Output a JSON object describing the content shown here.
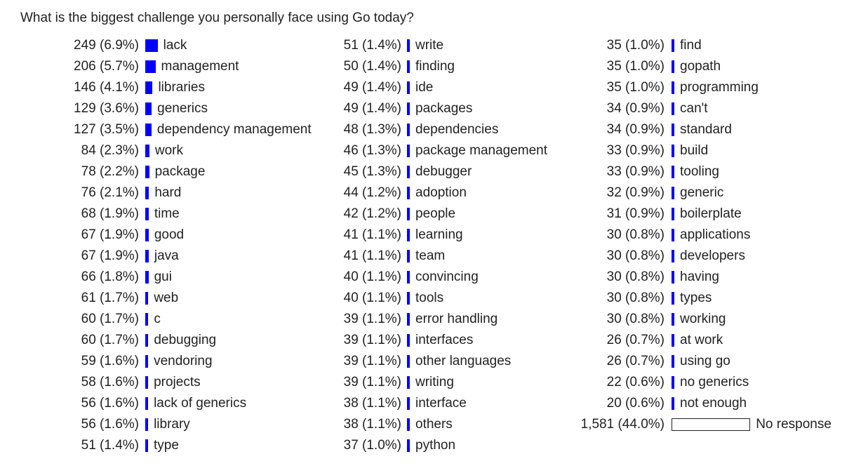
{
  "question": "What is the biggest challenge you personally face using Go today?",
  "chart_data": {
    "type": "bar",
    "title": "What is the biggest challenge you personally face using Go today?",
    "columns": [
      [
        {
          "count": "249",
          "pct": "(6.9%)",
          "value": 6.9,
          "label": "lack"
        },
        {
          "count": "206",
          "pct": "(5.7%)",
          "value": 5.7,
          "label": "management"
        },
        {
          "count": "146",
          "pct": "(4.1%)",
          "value": 4.1,
          "label": "libraries"
        },
        {
          "count": "129",
          "pct": "(3.6%)",
          "value": 3.6,
          "label": "generics"
        },
        {
          "count": "127",
          "pct": "(3.5%)",
          "value": 3.5,
          "label": "dependency management"
        },
        {
          "count": "84",
          "pct": "(2.3%)",
          "value": 2.3,
          "label": "work"
        },
        {
          "count": "78",
          "pct": "(2.2%)",
          "value": 2.2,
          "label": "package"
        },
        {
          "count": "76",
          "pct": "(2.1%)",
          "value": 2.1,
          "label": "hard"
        },
        {
          "count": "68",
          "pct": "(1.9%)",
          "value": 1.9,
          "label": "time"
        },
        {
          "count": "67",
          "pct": "(1.9%)",
          "value": 1.9,
          "label": "good"
        },
        {
          "count": "67",
          "pct": "(1.9%)",
          "value": 1.9,
          "label": "java"
        },
        {
          "count": "66",
          "pct": "(1.8%)",
          "value": 1.8,
          "label": "gui"
        },
        {
          "count": "61",
          "pct": "(1.7%)",
          "value": 1.7,
          "label": "web"
        },
        {
          "count": "60",
          "pct": "(1.7%)",
          "value": 1.7,
          "label": "c"
        },
        {
          "count": "60",
          "pct": "(1.7%)",
          "value": 1.7,
          "label": "debugging"
        },
        {
          "count": "59",
          "pct": "(1.6%)",
          "value": 1.6,
          "label": "vendoring"
        },
        {
          "count": "58",
          "pct": "(1.6%)",
          "value": 1.6,
          "label": "projects"
        },
        {
          "count": "56",
          "pct": "(1.6%)",
          "value": 1.6,
          "label": "lack of generics"
        },
        {
          "count": "56",
          "pct": "(1.6%)",
          "value": 1.6,
          "label": "library"
        },
        {
          "count": "51",
          "pct": "(1.4%)",
          "value": 1.4,
          "label": "type"
        }
      ],
      [
        {
          "count": "51",
          "pct": "(1.4%)",
          "value": 1.4,
          "label": "write"
        },
        {
          "count": "50",
          "pct": "(1.4%)",
          "value": 1.4,
          "label": "finding"
        },
        {
          "count": "49",
          "pct": "(1.4%)",
          "value": 1.4,
          "label": "ide"
        },
        {
          "count": "49",
          "pct": "(1.4%)",
          "value": 1.4,
          "label": "packages"
        },
        {
          "count": "48",
          "pct": "(1.3%)",
          "value": 1.3,
          "label": "dependencies"
        },
        {
          "count": "46",
          "pct": "(1.3%)",
          "value": 1.3,
          "label": "package management"
        },
        {
          "count": "45",
          "pct": "(1.3%)",
          "value": 1.3,
          "label": "debugger"
        },
        {
          "count": "44",
          "pct": "(1.2%)",
          "value": 1.2,
          "label": "adoption"
        },
        {
          "count": "42",
          "pct": "(1.2%)",
          "value": 1.2,
          "label": "people"
        },
        {
          "count": "41",
          "pct": "(1.1%)",
          "value": 1.1,
          "label": "learning"
        },
        {
          "count": "41",
          "pct": "(1.1%)",
          "value": 1.1,
          "label": "team"
        },
        {
          "count": "40",
          "pct": "(1.1%)",
          "value": 1.1,
          "label": "convincing"
        },
        {
          "count": "40",
          "pct": "(1.1%)",
          "value": 1.1,
          "label": "tools"
        },
        {
          "count": "39",
          "pct": "(1.1%)",
          "value": 1.1,
          "label": "error handling"
        },
        {
          "count": "39",
          "pct": "(1.1%)",
          "value": 1.1,
          "label": "interfaces"
        },
        {
          "count": "39",
          "pct": "(1.1%)",
          "value": 1.1,
          "label": "other languages"
        },
        {
          "count": "39",
          "pct": "(1.1%)",
          "value": 1.1,
          "label": "writing"
        },
        {
          "count": "38",
          "pct": "(1.1%)",
          "value": 1.1,
          "label": "interface"
        },
        {
          "count": "38",
          "pct": "(1.1%)",
          "value": 1.1,
          "label": "others"
        },
        {
          "count": "37",
          "pct": "(1.0%)",
          "value": 1.0,
          "label": "python"
        }
      ],
      [
        {
          "count": "35",
          "pct": "(1.0%)",
          "value": 1.0,
          "label": "find"
        },
        {
          "count": "35",
          "pct": "(1.0%)",
          "value": 1.0,
          "label": "gopath"
        },
        {
          "count": "35",
          "pct": "(1.0%)",
          "value": 1.0,
          "label": "programming"
        },
        {
          "count": "34",
          "pct": "(0.9%)",
          "value": 0.9,
          "label": "can't"
        },
        {
          "count": "34",
          "pct": "(0.9%)",
          "value": 0.9,
          "label": "standard"
        },
        {
          "count": "33",
          "pct": "(0.9%)",
          "value": 0.9,
          "label": "build"
        },
        {
          "count": "33",
          "pct": "(0.9%)",
          "value": 0.9,
          "label": "tooling"
        },
        {
          "count": "32",
          "pct": "(0.9%)",
          "value": 0.9,
          "label": "generic"
        },
        {
          "count": "31",
          "pct": "(0.9%)",
          "value": 0.9,
          "label": "boilerplate"
        },
        {
          "count": "30",
          "pct": "(0.8%)",
          "value": 0.8,
          "label": "applications"
        },
        {
          "count": "30",
          "pct": "(0.8%)",
          "value": 0.8,
          "label": "developers"
        },
        {
          "count": "30",
          "pct": "(0.8%)",
          "value": 0.8,
          "label": "having"
        },
        {
          "count": "30",
          "pct": "(0.8%)",
          "value": 0.8,
          "label": "types"
        },
        {
          "count": "30",
          "pct": "(0.8%)",
          "value": 0.8,
          "label": "working"
        },
        {
          "count": "26",
          "pct": "(0.7%)",
          "value": 0.7,
          "label": "at work"
        },
        {
          "count": "26",
          "pct": "(0.7%)",
          "value": 0.7,
          "label": "using go"
        },
        {
          "count": "22",
          "pct": "(0.6%)",
          "value": 0.6,
          "label": "no generics"
        },
        {
          "count": "20",
          "pct": "(0.6%)",
          "value": 0.6,
          "label": "not enough"
        },
        {
          "count": "1,581",
          "pct": "(44.0%)",
          "value": 44.0,
          "label": "No response",
          "outlined": true
        }
      ]
    ]
  }
}
